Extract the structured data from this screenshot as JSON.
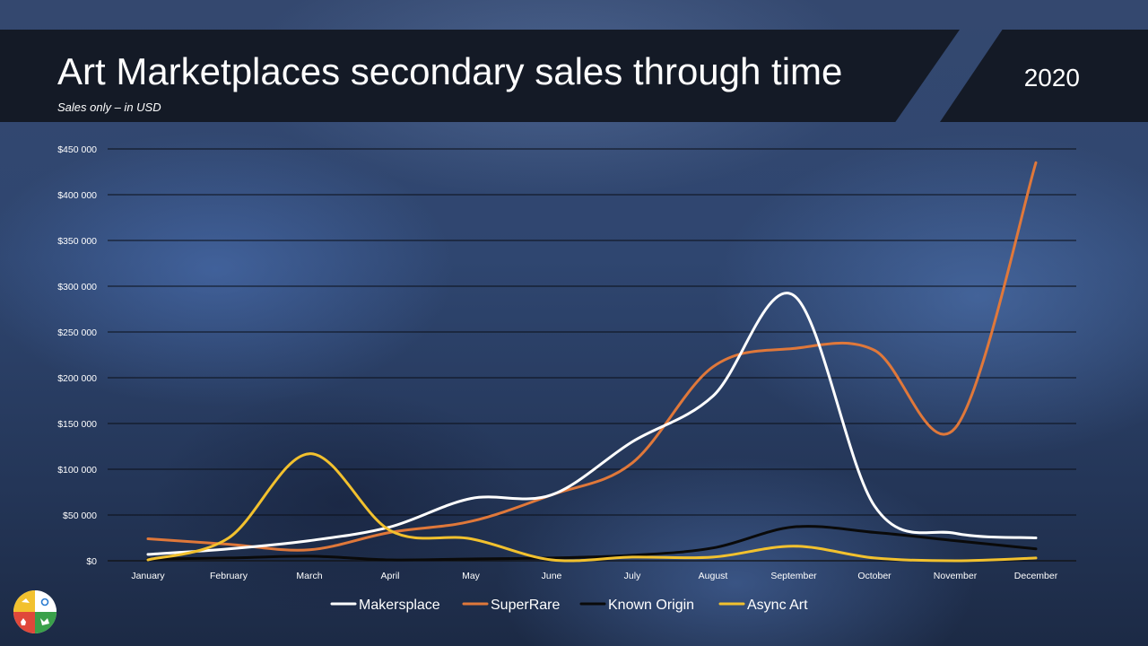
{
  "slide": {
    "title": "Art Marketplaces secondary sales through time",
    "subtitle": "Sales only – in USD",
    "year": "2020"
  },
  "chart_data": {
    "type": "line",
    "title": "Art Marketplaces secondary sales through time",
    "subtitle": "Sales only – in USD",
    "categories": [
      "January",
      "February",
      "March",
      "April",
      "May",
      "June",
      "July",
      "August",
      "September",
      "October",
      "November",
      "December"
    ],
    "ylim": [
      0,
      450000
    ],
    "yticks": [
      0,
      50000,
      100000,
      150000,
      200000,
      250000,
      300000,
      350000,
      400000,
      450000
    ],
    "ytick_labels": [
      "$0",
      "$50 000",
      "$100 000",
      "$150 000",
      "$200 000",
      "$250 000",
      "$300 000",
      "$350 000",
      "$400 000",
      "$450 000"
    ],
    "grid": true,
    "legend_position": "bottom",
    "series": [
      {
        "name": "Makersplace",
        "color": "#ffffff",
        "values": [
          7000,
          13000,
          22000,
          37000,
          68000,
          72000,
          130000,
          180000,
          290000,
          60000,
          30000,
          25000
        ]
      },
      {
        "name": "SuperRare",
        "color": "#e0783a",
        "values": [
          24000,
          18000,
          12000,
          31000,
          43000,
          72000,
          107000,
          212000,
          232000,
          230000,
          145000,
          435000
        ]
      },
      {
        "name": "Known Origin",
        "color": "#0a0a0a",
        "values": [
          2000,
          3000,
          5000,
          1000,
          2000,
          3000,
          6000,
          14000,
          37000,
          31000,
          22000,
          13000
        ]
      },
      {
        "name": "Async Art",
        "color": "#f2c12e",
        "values": [
          1000,
          25000,
          117000,
          33000,
          24000,
          1000,
          4000,
          4000,
          16000,
          3000,
          0,
          3000
        ]
      }
    ]
  },
  "icons": {
    "logo": "quadrant-logo-icon"
  }
}
